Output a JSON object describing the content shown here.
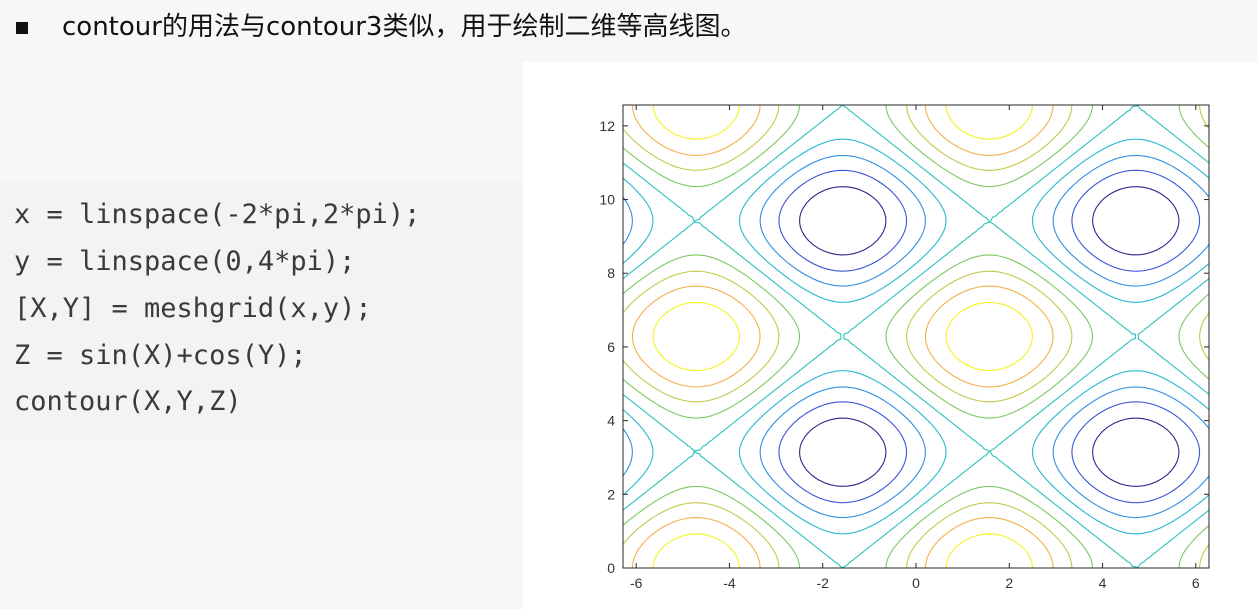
{
  "header": {
    "text": "contour的用法与contour3类似，用于绘制二维等高线图。"
  },
  "code": {
    "lines": [
      "x = linspace(-2*pi,2*pi);",
      "y = linspace(0,4*pi);",
      "[X,Y] = meshgrid(x,y);",
      "Z = sin(X)+cos(Y);",
      "contour(X,Y,Z)"
    ]
  },
  "chart_data": {
    "type": "contour",
    "function": "Z = sin(X)+cos(Y)",
    "x_range": [
      -6.283185,
      6.283185
    ],
    "y_range": [
      0,
      12.566371
    ],
    "xlim": [
      -6.283185,
      6.283185
    ],
    "ylim": [
      0,
      12.566371
    ],
    "levels": [
      -1.6,
      -1.2,
      -0.8,
      -0.4,
      0.0,
      0.4,
      0.8,
      1.2,
      1.6
    ],
    "level_colors": [
      "#3d1f8c",
      "#3b55d6",
      "#2f8fe3",
      "#26b8cf",
      "#28c4b8",
      "#7ec864",
      "#c6c84c",
      "#f2b14a",
      "#f7f21e"
    ],
    "xticks": [
      -6,
      -4,
      -2,
      0,
      2,
      4,
      6
    ],
    "yticks": [
      0,
      2,
      4,
      6,
      8,
      10,
      12
    ],
    "grid": false,
    "box": true
  }
}
